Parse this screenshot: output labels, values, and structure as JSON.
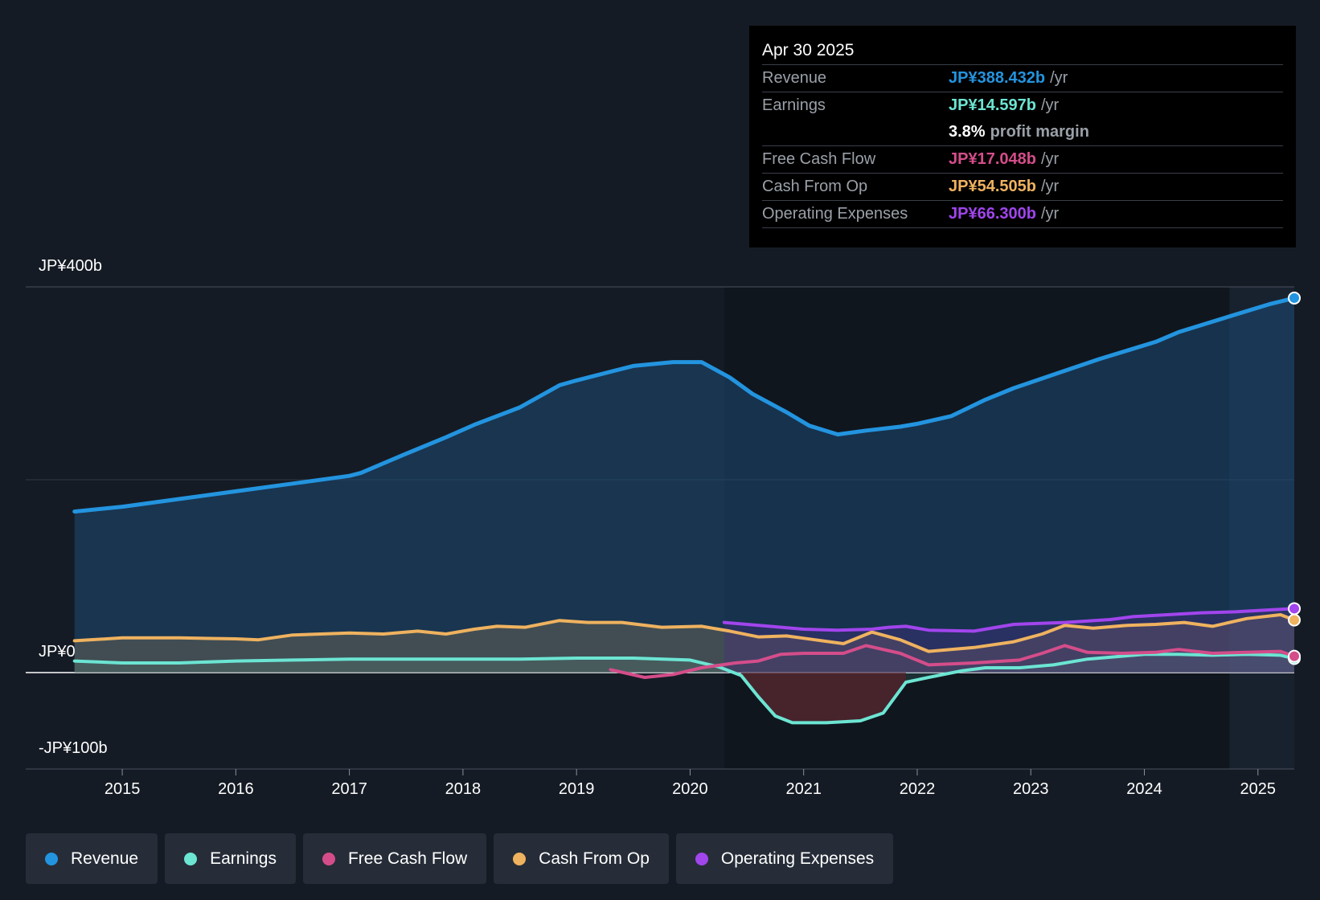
{
  "tooltip": {
    "date": "Apr 30 2025",
    "rows": [
      {
        "label": "Revenue",
        "value": "JP¥388.432b",
        "unit": "/yr",
        "color": "#2394df"
      },
      {
        "label": "Earnings",
        "value": "JP¥14.597b",
        "unit": "/yr",
        "color": "#6ce5d3"
      },
      {
        "label": "",
        "value": "3.8%",
        "unit": "profit margin",
        "color": "#ffffff"
      },
      {
        "label": "Free Cash Flow",
        "value": "JP¥17.048b",
        "unit": "/yr",
        "color": "#d44d8a"
      },
      {
        "label": "Cash From Op",
        "value": "JP¥54.505b",
        "unit": "/yr",
        "color": "#efb25f"
      },
      {
        "label": "Operating Expenses",
        "value": "JP¥66.300b",
        "unit": "/yr",
        "color": "#a145ed"
      }
    ]
  },
  "legend": [
    {
      "label": "Revenue",
      "color": "#2394df"
    },
    {
      "label": "Earnings",
      "color": "#6ce5d3"
    },
    {
      "label": "Free Cash Flow",
      "color": "#d44d8a"
    },
    {
      "label": "Cash From Op",
      "color": "#efb25f"
    },
    {
      "label": "Operating Expenses",
      "color": "#a145ed"
    }
  ],
  "chart_data": {
    "type": "line",
    "title": "",
    "xlabel": "",
    "ylabel": "",
    "ylim": [
      -100,
      400
    ],
    "y_tick_labels": {
      "top": "JP¥400b",
      "zero": "JP¥0",
      "bottom": "-JP¥100b"
    },
    "x_tick_labels": [
      "2015",
      "2016",
      "2017",
      "2018",
      "2019",
      "2020",
      "2021",
      "2022",
      "2023",
      "2024",
      "2025"
    ],
    "x_tick_values": [
      2015,
      2016,
      2017,
      2018,
      2019,
      2020,
      2021,
      2022,
      2023,
      2024,
      2025
    ],
    "xlim": [
      2014.15,
      2025.32
    ],
    "forecast_start": 2024.75,
    "series": [
      {
        "name": "Revenue",
        "color": "#2394df",
        "fill": true,
        "x": [
          2014.58,
          2015.0,
          2015.5,
          2016.0,
          2016.5,
          2017.0,
          2017.1,
          2017.5,
          2017.85,
          2018.1,
          2018.5,
          2018.85,
          2019.0,
          2019.5,
          2019.85,
          2020.1,
          2020.35,
          2020.55,
          2020.85,
          2021.05,
          2021.3,
          2021.55,
          2021.85,
          2022.0,
          2022.3,
          2022.6,
          2022.85,
          2023.05,
          2023.3,
          2023.6,
          2023.85,
          2024.1,
          2024.3,
          2024.6,
          2024.85,
          2025.1,
          2025.32
        ],
        "values": [
          167,
          172,
          180,
          188,
          196,
          204,
          207,
          227,
          244,
          257,
          275,
          298,
          303,
          318,
          322,
          322,
          306,
          289,
          270,
          256,
          247,
          251,
          255,
          258,
          266,
          283,
          295,
          303,
          313,
          325,
          334,
          343,
          353,
          364,
          373,
          382,
          388.4
        ]
      },
      {
        "name": "Earnings",
        "color": "#6ce5d3",
        "fill": true,
        "x": [
          2014.58,
          2015.0,
          2015.5,
          2016.0,
          2016.5,
          2017.0,
          2017.5,
          2018.0,
          2018.5,
          2019.0,
          2019.5,
          2020.0,
          2020.25,
          2020.45,
          2020.6,
          2020.75,
          2020.9,
          2021.2,
          2021.5,
          2021.7,
          2021.9,
          2022.1,
          2022.4,
          2022.6,
          2022.9,
          2023.2,
          2023.5,
          2023.8,
          2024.0,
          2024.3,
          2024.6,
          2024.9,
          2025.2,
          2025.32
        ],
        "values": [
          12,
          10,
          10,
          12,
          13,
          14,
          14,
          14,
          14,
          15,
          15,
          13,
          6,
          -3,
          -25,
          -45,
          -52,
          -52,
          -50,
          -42,
          -10,
          -5,
          2,
          5,
          5,
          8,
          14,
          17,
          19,
          19,
          18,
          19,
          18,
          14.6
        ]
      },
      {
        "name": "Free Cash Flow",
        "color": "#d44d8a",
        "fill": false,
        "x": [
          2019.3,
          2019.6,
          2019.85,
          2020.1,
          2020.4,
          2020.6,
          2020.8,
          2021.0,
          2021.35,
          2021.55,
          2021.85,
          2022.1,
          2022.5,
          2022.9,
          2023.1,
          2023.3,
          2023.5,
          2023.8,
          2024.1,
          2024.3,
          2024.6,
          2024.9,
          2025.2,
          2025.32
        ],
        "values": [
          3,
          -5,
          -2,
          5,
          10,
          12,
          19,
          20,
          20,
          28,
          20,
          8,
          10,
          13,
          20,
          28,
          21,
          20,
          21,
          24,
          20,
          21,
          22,
          17
        ]
      },
      {
        "name": "Cash From Op",
        "color": "#efb25f",
        "fill": true,
        "x": [
          2014.58,
          2015.0,
          2015.5,
          2016.0,
          2016.2,
          2016.5,
          2017.0,
          2017.3,
          2017.6,
          2017.85,
          2018.1,
          2018.3,
          2018.55,
          2018.85,
          2019.1,
          2019.4,
          2019.75,
          2020.1,
          2020.35,
          2020.6,
          2020.85,
          2021.1,
          2021.35,
          2021.6,
          2021.85,
          2022.1,
          2022.5,
          2022.85,
          2023.1,
          2023.3,
          2023.55,
          2023.85,
          2024.1,
          2024.35,
          2024.6,
          2024.9,
          2025.2,
          2025.32
        ],
        "values": [
          33,
          36,
          36,
          35,
          34,
          39,
          41,
          40,
          43,
          40,
          45,
          48,
          47,
          54,
          52,
          52,
          47,
          48,
          43,
          37,
          38,
          34,
          30,
          42,
          34,
          22,
          26,
          32,
          40,
          49,
          46,
          49,
          50,
          52,
          48,
          56,
          60,
          54.5
        ]
      },
      {
        "name": "Operating Expenses",
        "color": "#a145ed",
        "fill": true,
        "x": [
          2020.3,
          2020.7,
          2021.0,
          2021.3,
          2021.6,
          2021.75,
          2021.9,
          2022.1,
          2022.5,
          2022.85,
          2023.3,
          2023.7,
          2023.9,
          2024.2,
          2024.5,
          2024.8,
          2025.1,
          2025.32
        ],
        "values": [
          52,
          48,
          45,
          44,
          45,
          47,
          48,
          44,
          43,
          50,
          52,
          55,
          58,
          60,
          62,
          63,
          65,
          66.3
        ]
      }
    ]
  }
}
